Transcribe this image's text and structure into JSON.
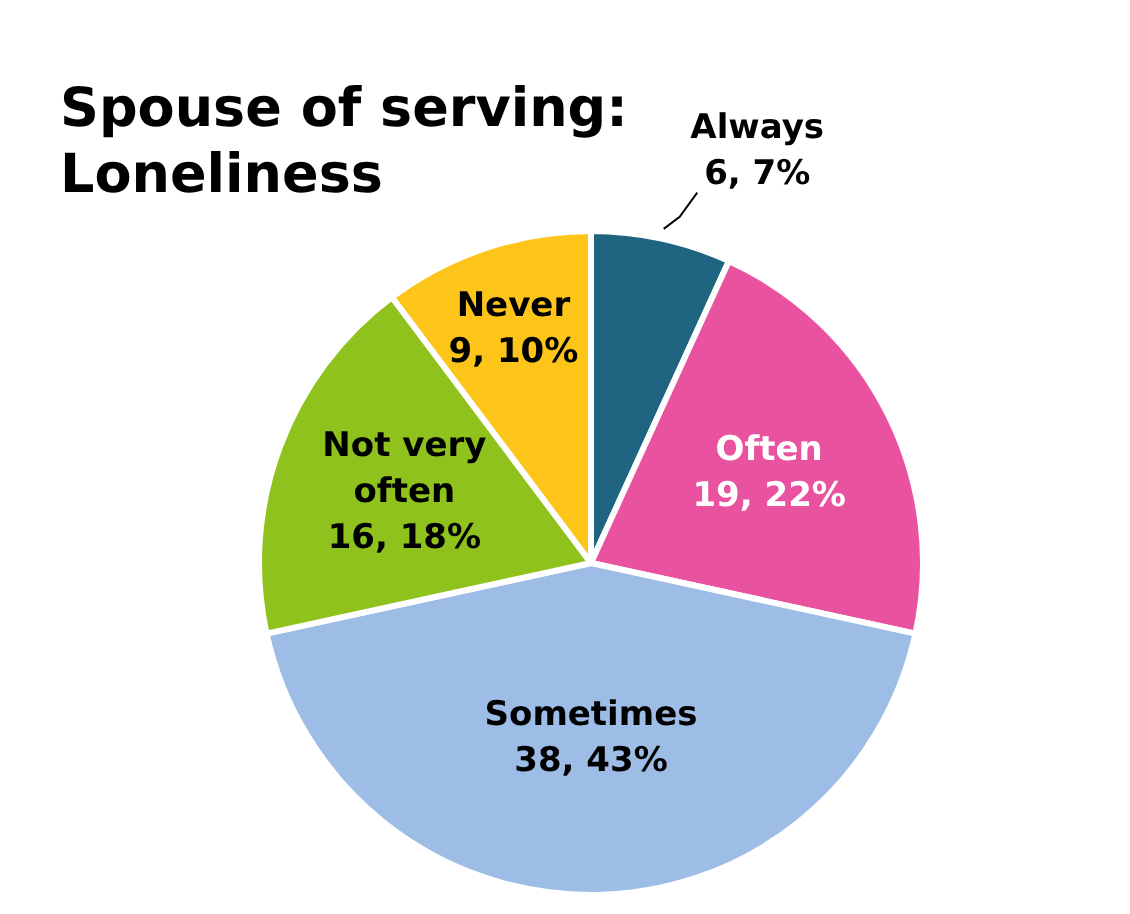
{
  "chart_data": {
    "type": "pie",
    "title": "Spouse of serving: Loneliness",
    "categories": [
      "Always",
      "Often",
      "Sometimes",
      "Not very often",
      "Never"
    ],
    "values": [
      6,
      19,
      38,
      16,
      9
    ],
    "colors": [
      "#1f6480",
      "#e8529e",
      "#9dbde6",
      "#8fc21c",
      "#fdc41a"
    ],
    "value_labels": [
      "6, 7%",
      "19, 22%",
      "38, 43%",
      "16, 18%",
      "9, 10%"
    ],
    "legend": false
  }
}
